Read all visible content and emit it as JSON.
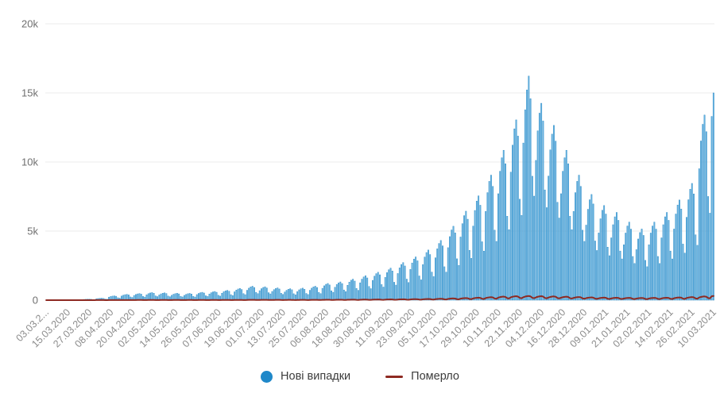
{
  "legend": {
    "position": "bottom",
    "new_cases_label": "Нові випадки",
    "deaths_label": "Померло"
  },
  "colors": {
    "bar_fill": "#6ab5e2",
    "bar_edge": "#2f8dc7",
    "legend_dot": "#1f88c9",
    "deaths_line": "#8e2a22",
    "grid": "#ebebeb",
    "y_tick_text": "#6f6f6f",
    "x_tick_text": "#8c8c8c"
  },
  "chart_data": {
    "type": "bar",
    "title": "",
    "xlabel": "",
    "ylabel": "",
    "ylim": [
      0,
      20000
    ],
    "grid": "horizontal",
    "legend_position": "bottom",
    "y_tick_values": [
      0,
      5000,
      10000,
      15000,
      20000
    ],
    "y_tick_labels": [
      "0",
      "5k",
      "10k",
      "15k",
      "20k"
    ],
    "x_tick_step_days": 12,
    "x_tick_labels": [
      "03.03.2...",
      "15.03.2020",
      "27.03.2020",
      "08.04.2020",
      "20.04.2020",
      "02.05.2020",
      "14.05.2020",
      "26.05.2020",
      "07.06.2020",
      "19.06.2020",
      "01.07.2020",
      "13.07.2020",
      "25.07.2020",
      "06.08.2020",
      "18.08.2020",
      "30.08.2020",
      "11.09.2020",
      "23.09.2020",
      "05.10.2020",
      "17.10.2020",
      "29.10.2020",
      "10.11.2020",
      "22.11.2020",
      "04.12.2020",
      "16.12.2020",
      "28.12.2020",
      "09.01.2021",
      "21.01.2021",
      "02.02.2021",
      "14.02.2021",
      "26.02.2021",
      "10.03.2021"
    ],
    "series": [
      {
        "name": "Нові випадки",
        "type": "bar",
        "color": "#6ab5e2",
        "edge_color": "#2f8dc7",
        "values": [
          1,
          2,
          3,
          3,
          3,
          2,
          1,
          7,
          9,
          9,
          10,
          9,
          6,
          5,
          21,
          26,
          28,
          30,
          27,
          17,
          14,
          52,
          63,
          69,
          73,
          66,
          41,
          34,
          99,
          120,
          133,
          140,
          127,
          78,
          66,
          220,
          267,
          295,
          310,
          282,
          174,
          146,
          298,
          361,
          399,
          420,
          382,
          235,
          197,
          341,
          413,
          456,
          480,
          437,
          269,
          226,
          391,
          473,
          523,
          550,
          501,
          308,
          259,
          376,
          456,
          504,
          530,
          482,
          297,
          249,
          355,
          430,
          475,
          500,
          455,
          280,
          235,
          348,
          421,
          466,
          490,
          446,
          274,
          230,
          405,
          490,
          542,
          570,
          519,
          319,
          268,
          447,
          542,
          599,
          630,
          573,
          353,
          296,
          504,
          611,
          675,
          710,
          646,
          398,
          334,
          604,
          731,
          808,
          850,
          774,
          476,
          400,
          717,
          869,
          960,
          1010,
          919,
          566,
          475,
          689,
          834,
          922,
          970,
          883,
          543,
          456,
          632,
          765,
          846,
          890,
          810,
          498,
          418,
          589,
          714,
          789,
          830,
          755,
          465,
          390,
          618,
          748,
          827,
          870,
          792,
          487,
          409,
          717,
          869,
          960,
          1010,
          919,
          566,
          475,
          859,
          1041,
          1150,
          1210,
          1101,
          678,
          569,
          937,
          1135,
          1254,
          1320,
          1201,
          739,
          620,
          1079,
          1307,
          1444,
          1520,
          1383,
          851,
          714,
          1257,
          1522,
          1682,
          1770,
          1611,
          991,
          832,
          1434,
          1737,
          1919,
          2020,
          1838,
          1131,
          949,
          1647,
          1995,
          2204,
          2320,
          2111,
          1299,
          1090,
          1931,
          2339,
          2584,
          2720,
          2475,
          1523,
          1278,
          2222,
          2692,
          2974,
          3130,
          2848,
          1753,
          1471,
          2577,
          3122,
          3449,
          3630,
          3303,
          2033,
          1706,
          3067,
          3715,
          4104,
          4320,
          3931,
          2419,
          2030,
          3799,
          4601,
          5083,
          5350,
          4869,
          2996,
          2515,
          4572,
          5538,
          6118,
          6440,
          5860,
          3606,
          3027,
          5361,
          6493,
          7173,
          7550,
          6871,
          4228,
          3549,
          6426,
          7783,
          8598,
          9050,
          8236,
          5068,
          4254,
          7704,
          9331,
          10308,
          10850,
          9874,
          6076,
          5100,
          9266,
          11223,
          12398,
          13050,
          11876,
          7308,
          6134,
          11374,
          13777,
          15219,
          16218,
          14578,
          8971,
          7529,
          10118,
          12255,
          13538,
          14250,
          12968,
          7980,
          6698,
          8982,
          10879,
          12018,
          12650,
          11512,
          7084,
          5946,
          7704,
          9331,
          10308,
          10850,
          9874,
          6076,
          5100,
          6426,
          7783,
          8598,
          9050,
          8236,
          5068,
          4254,
          5432,
          6579,
          7268,
          7650,
          6962,
          4284,
          3596,
          4864,
          5891,
          6508,
          6850,
          6234,
          3836,
          3220,
          4509,
          5461,
          6033,
          6350,
          5779,
          3556,
          2985,
          4012,
          4859,
          5368,
          5650,
          5142,
          3164,
          2656,
          3657,
          4429,
          4893,
          5150,
          4687,
          2884,
          2421,
          4012,
          4859,
          5368,
          5650,
          5142,
          3164,
          2656,
          4509,
          5461,
          6033,
          6350,
          5779,
          3556,
          2985,
          5148,
          6235,
          6888,
          7250,
          6598,
          4060,
          3408,
          6000,
          7267,
          8028,
          8450,
          7690,
          4732,
          3972,
          9514,
          11524,
          12730,
          13400,
          12194,
          7504,
          6298,
          13300,
          15000
        ]
      },
      {
        "name": "Померло",
        "type": "line",
        "color": "#8e2a22",
        "values": [
          0,
          0,
          0,
          0,
          0,
          0,
          0,
          1,
          1,
          1,
          1,
          1,
          0,
          0,
          1,
          2,
          2,
          2,
          2,
          1,
          1,
          2,
          3,
          3,
          3,
          3,
          2,
          1,
          4,
          4,
          5,
          5,
          5,
          3,
          2,
          6,
          7,
          8,
          8,
          7,
          4,
          4,
          7,
          9,
          10,
          10,
          9,
          6,
          5,
          9,
          10,
          11,
          12,
          11,
          7,
          6,
          10,
          12,
          13,
          14,
          13,
          8,
          7,
          9,
          11,
          12,
          13,
          12,
          7,
          6,
          9,
          11,
          12,
          13,
          12,
          7,
          6,
          9,
          10,
          11,
          12,
          11,
          7,
          6,
          9,
          11,
          12,
          13,
          12,
          7,
          6,
          10,
          12,
          13,
          14,
          13,
          8,
          7,
          11,
          14,
          15,
          16,
          15,
          9,
          8,
          13,
          15,
          17,
          18,
          16,
          10,
          8,
          16,
          20,
          22,
          23,
          21,
          13,
          11,
          16,
          20,
          22,
          23,
          21,
          13,
          11,
          15,
          18,
          20,
          21,
          19,
          12,
          10,
          14,
          17,
          19,
          20,
          18,
          11,
          9,
          15,
          18,
          20,
          21,
          19,
          12,
          10,
          17,
          21,
          23,
          24,
          22,
          13,
          11,
          20,
          24,
          27,
          28,
          25,
          16,
          13,
          22,
          27,
          29,
          31,
          28,
          17,
          15,
          26,
          31,
          34,
          36,
          33,
          20,
          17,
          30,
          36,
          40,
          42,
          38,
          24,
          20,
          34,
          41,
          46,
          48,
          44,
          27,
          23,
          39,
          47,
          52,
          55,
          50,
          31,
          26,
          45,
          55,
          61,
          64,
          58,
          36,
          30,
          53,
          64,
          70,
          74,
          67,
          41,
          35,
          61,
          74,
          82,
          86,
          78,
          48,
          40,
          72,
          88,
          97,
          102,
          93,
          57,
          48,
          89,
          108,
          120,
          126,
          115,
          71,
          59,
          108,
          131,
          144,
          152,
          138,
          85,
          71,
          126,
          153,
          169,
          178,
          162,
          100,
          84,
          151,
          183,
          202,
          213,
          194,
          119,
          100,
          182,
          220,
          243,
          256,
          233,
          143,
          120,
          204,
          247,
          273,
          287,
          261,
          161,
          135,
          213,
          258,
          285,
          300,
          273,
          168,
          141,
          202,
          245,
          271,
          285,
          259,
          160,
          134,
          192,
          232,
          257,
          270,
          246,
          151,
          127,
          178,
          215,
          238,
          250,
          228,
          140,
          118,
          160,
          194,
          215,
          226,
          206,
          127,
          106,
          142,
          172,
          190,
          200,
          182,
          112,
          94,
          131,
          159,
          176,
          185,
          168,
          104,
          87,
          124,
          151,
          166,
          175,
          159,
          98,
          82,
          117,
          142,
          157,
          165,
          150,
          92,
          78,
          112,
          136,
          150,
          158,
          144,
          88,
          74,
          117,
          142,
          157,
          165,
          150,
          92,
          78,
          124,
          151,
          166,
          175,
          159,
          98,
          82,
          138,
          168,
          185,
          195,
          177,
          109,
          92,
          156,
          189,
          209,
          220,
          200,
          123,
          103,
          192,
          232,
          257,
          270,
          246,
          151,
          127,
          285,
          300
        ]
      }
    ]
  }
}
